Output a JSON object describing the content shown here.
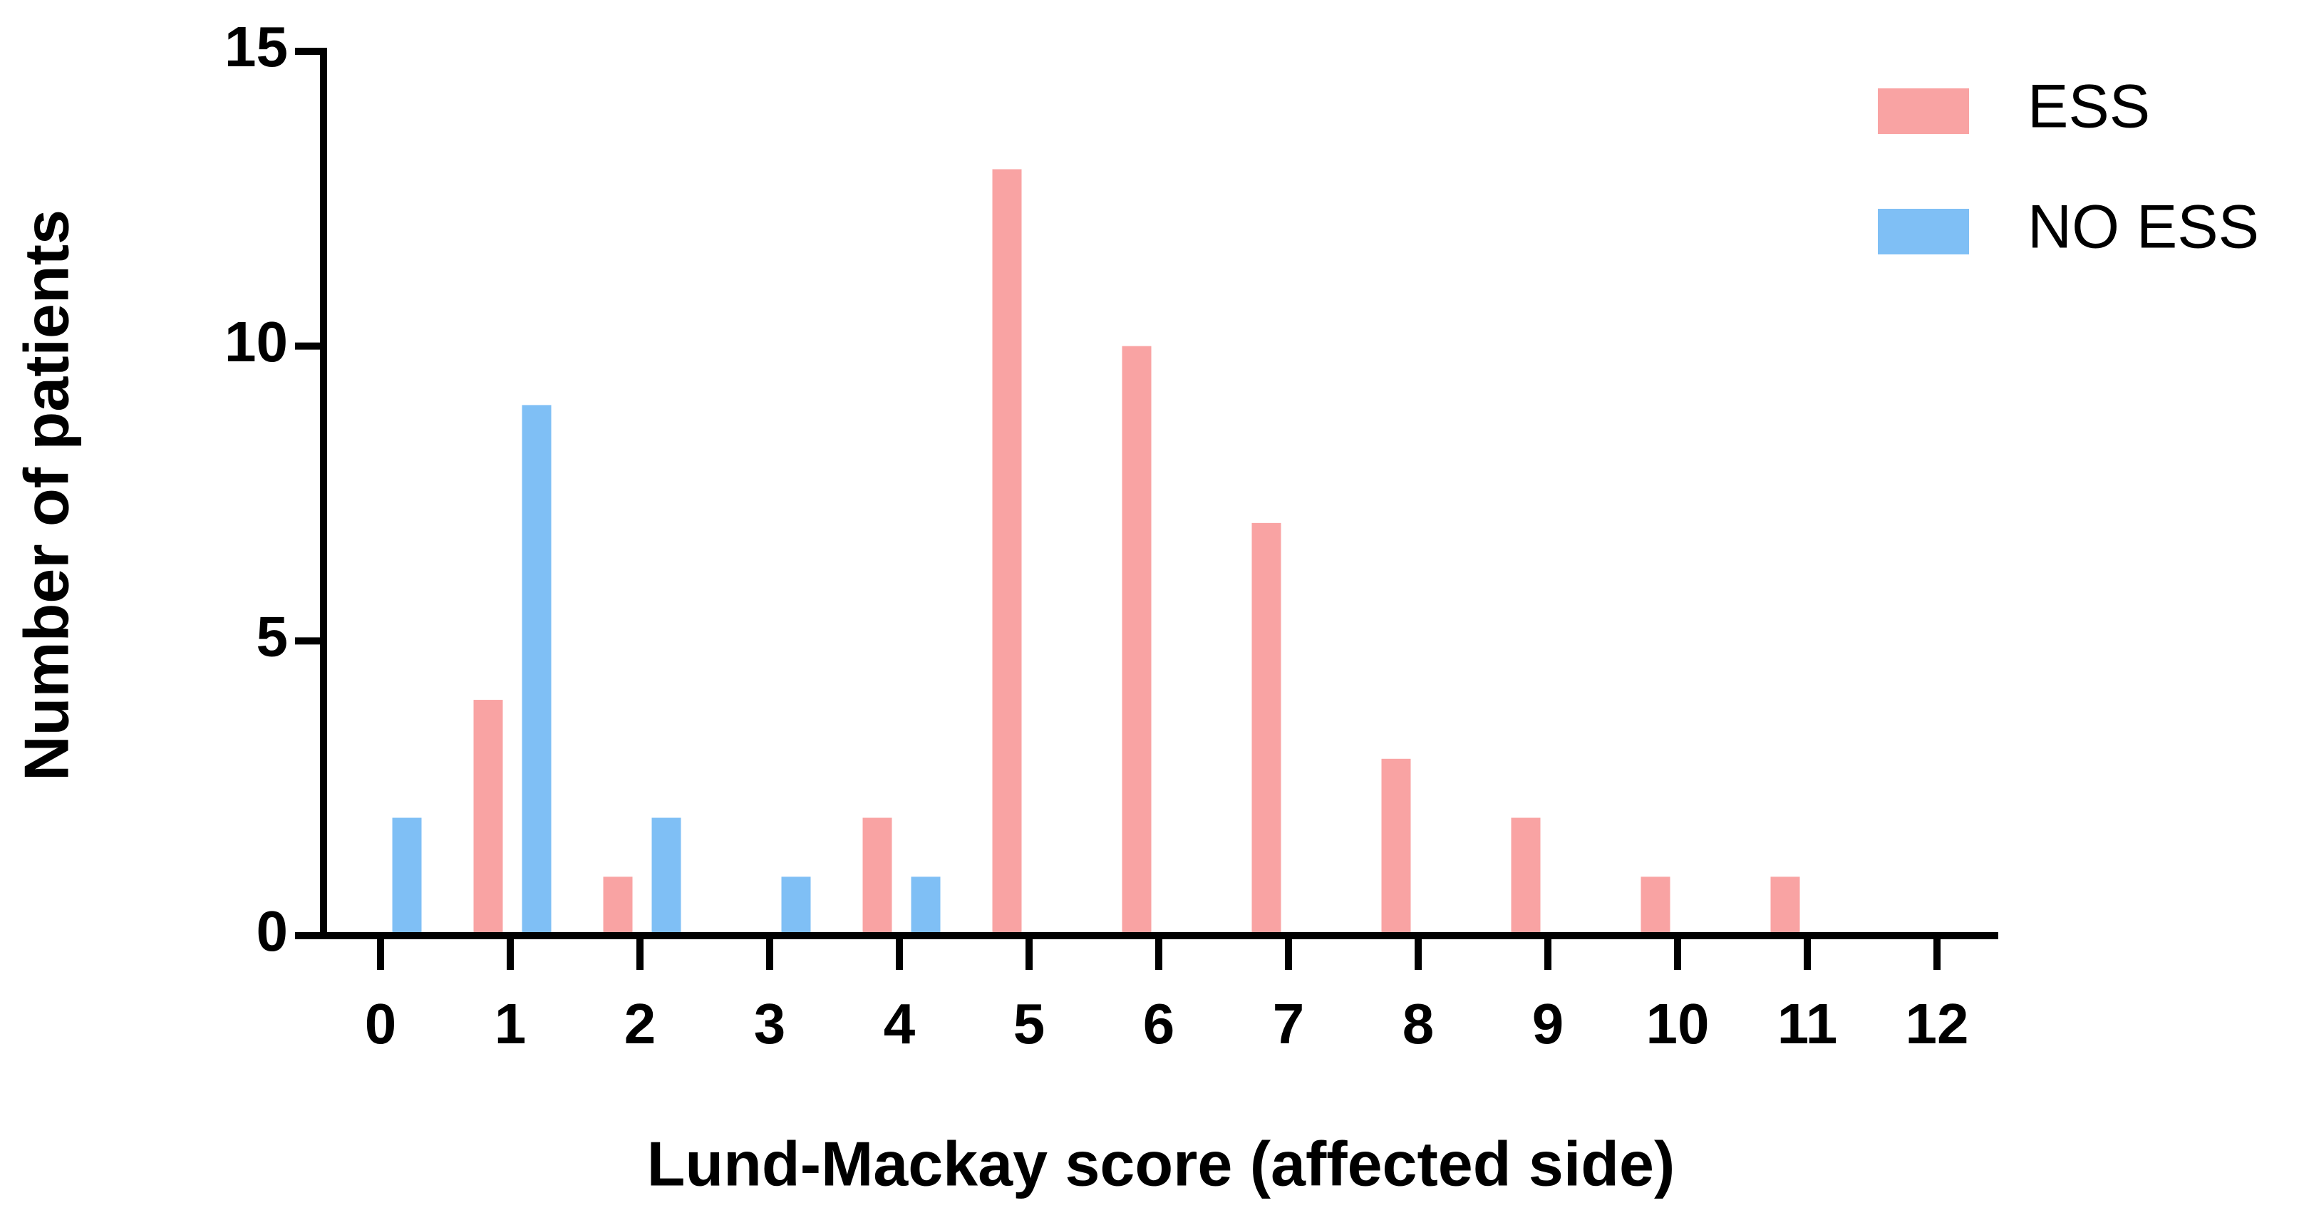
{
  "chart_data": {
    "type": "bar",
    "x_label": "Lund-Mackay score (affected side)",
    "y_label": "Number of patients",
    "categories": [
      "0",
      "1",
      "2",
      "3",
      "4",
      "5",
      "6",
      "7",
      "8",
      "9",
      "10",
      "11",
      "12"
    ],
    "series": [
      {
        "name": "ESS",
        "color": "#f9a3a3",
        "values": [
          0,
          4,
          1,
          0,
          2,
          13,
          10,
          7,
          3,
          2,
          1,
          1,
          0
        ]
      },
      {
        "name": "NO ESS",
        "color": "#7fbff5",
        "values": [
          2,
          9,
          2,
          1,
          1,
          0,
          0,
          0,
          0,
          0,
          0,
          0,
          0
        ]
      }
    ],
    "ylim": [
      0,
      15
    ],
    "yticks": [
      0,
      5,
      10,
      15
    ],
    "legend": "top-right"
  }
}
